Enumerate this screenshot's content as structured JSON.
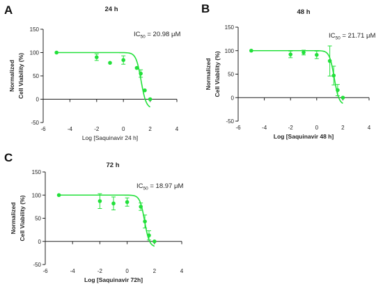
{
  "color": "#22e03a",
  "chart_data": [
    {
      "type": "scatter",
      "letter": "A",
      "title": "24 h",
      "xlabel": "Log [Saquinavir 24 h]",
      "xlabel_bold": false,
      "ylabel_lines": [
        "Normalized",
        "Cell Viability (%)"
      ],
      "ic50_prefix": "IC",
      "ic50_sub": "50",
      "ic50_rest": " = 20.98 μM",
      "xlim": [
        -6,
        4
      ],
      "ylim": [
        -50,
        150
      ],
      "xticks": [
        -6,
        -4,
        -2,
        0,
        2,
        4
      ],
      "yticks": [
        -50,
        0,
        50,
        100,
        150
      ],
      "fit": {
        "top": 100,
        "bottom": -20,
        "logIC50": 1.322,
        "hill": 2.3,
        "x_from": -5,
        "x_to": 2
      },
      "points": [
        {
          "x": -5,
          "y": 100,
          "err": 0
        },
        {
          "x": -2,
          "y": 90,
          "err": 7
        },
        {
          "x": -1,
          "y": 78,
          "err": 0
        },
        {
          "x": 0,
          "y": 84,
          "err": 9
        },
        {
          "x": 1,
          "y": 67,
          "err": 0
        },
        {
          "x": 1.3,
          "y": 55,
          "err": 8
        },
        {
          "x": 1.6,
          "y": 19,
          "err": 0
        },
        {
          "x": 2,
          "y": 0,
          "err": 0
        }
      ]
    },
    {
      "type": "scatter",
      "letter": "B",
      "title": "48 h",
      "xlabel": "Log [Saquinavir 48 h]",
      "xlabel_bold": true,
      "ylabel_lines": [
        "Normalized",
        "Cell Viability (%)"
      ],
      "ic50_prefix": "IC",
      "ic50_sub": "50",
      "ic50_rest": " = 21.71 μM",
      "xlim": [
        -6,
        4
      ],
      "ylim": [
        -50,
        150
      ],
      "xticks": [
        -6,
        -4,
        -2,
        0,
        2,
        4
      ],
      "yticks": [
        -50,
        0,
        50,
        100,
        150
      ],
      "fit": {
        "top": 100,
        "bottom": -15,
        "logIC50": 1.337,
        "hill": 2.4,
        "x_from": -5,
        "x_to": 2
      },
      "points": [
        {
          "x": -5,
          "y": 100,
          "err": 0
        },
        {
          "x": -2,
          "y": 92,
          "err": 7
        },
        {
          "x": -1,
          "y": 96,
          "err": 5
        },
        {
          "x": 0,
          "y": 91,
          "err": 8
        },
        {
          "x": 1,
          "y": 78,
          "err": 32
        },
        {
          "x": 1.3,
          "y": 47,
          "err": 20
        },
        {
          "x": 1.6,
          "y": 16,
          "err": 12
        },
        {
          "x": 2,
          "y": 0,
          "err": 0
        }
      ]
    },
    {
      "type": "scatter",
      "letter": "C",
      "title": "72 h",
      "xlabel": "Log [Saquinavir 72h]",
      "xlabel_bold": true,
      "ylabel_lines": [
        "Normalized",
        "Cell Viability (%)"
      ],
      "ic50_prefix": "IC",
      "ic50_sub": "50",
      "ic50_rest": " = 18.97 μM",
      "xlim": [
        -6,
        4
      ],
      "ylim": [
        -50,
        150
      ],
      "xticks": [
        -6,
        -4,
        -2,
        0,
        2,
        4
      ],
      "yticks": [
        -50,
        0,
        50,
        100,
        150
      ],
      "fit": {
        "top": 100,
        "bottom": -12,
        "logIC50": 1.278,
        "hill": 2.5,
        "x_from": -5,
        "x_to": 2
      },
      "points": [
        {
          "x": -5,
          "y": 100,
          "err": 0
        },
        {
          "x": -2,
          "y": 87,
          "err": 16
        },
        {
          "x": -1,
          "y": 82,
          "err": 14
        },
        {
          "x": 0,
          "y": 85,
          "err": 9
        },
        {
          "x": 1,
          "y": 75,
          "err": 8
        },
        {
          "x": 1.3,
          "y": 43,
          "err": 14
        },
        {
          "x": 1.6,
          "y": 13,
          "err": 10
        },
        {
          "x": 2,
          "y": 0,
          "err": 0
        }
      ]
    }
  ]
}
